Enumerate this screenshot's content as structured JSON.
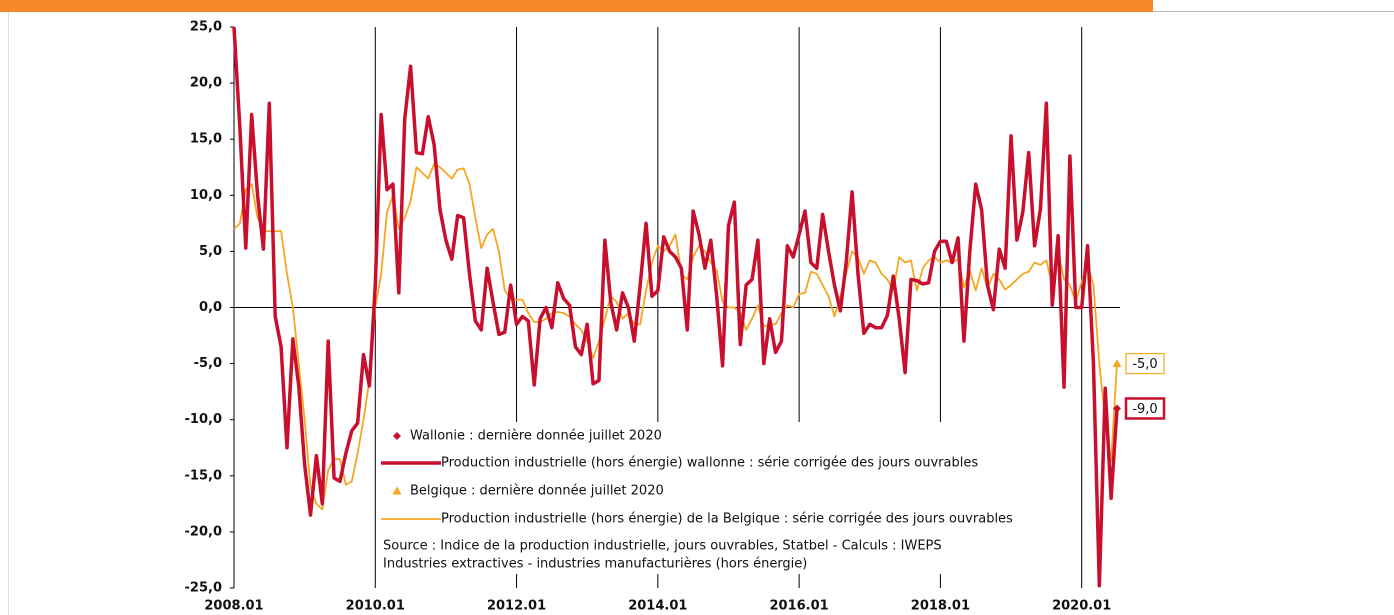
{
  "chart_data": {
    "type": "line",
    "categories": [
      "2008.01",
      null,
      null,
      null,
      null,
      null,
      null,
      null,
      null,
      null,
      null,
      null,
      null,
      null,
      null,
      null,
      null,
      null,
      null,
      null,
      null,
      null,
      null,
      null,
      "2010.01",
      null,
      null,
      null,
      null,
      null,
      null,
      null,
      null,
      null,
      null,
      null,
      null,
      null,
      null,
      null,
      null,
      null,
      null,
      null,
      null,
      null,
      null,
      null,
      "2012.01",
      null,
      null,
      null,
      null,
      null,
      null,
      null,
      null,
      null,
      null,
      null,
      null,
      null,
      null,
      null,
      null,
      null,
      null,
      null,
      null,
      null,
      null,
      null,
      "2014.01",
      null,
      null,
      null,
      null,
      null,
      null,
      null,
      null,
      null,
      null,
      null,
      null,
      null,
      null,
      null,
      null,
      null,
      null,
      null,
      null,
      null,
      null,
      null,
      "2016.01",
      null,
      null,
      null,
      null,
      null,
      null,
      null,
      null,
      null,
      null,
      null,
      null,
      null,
      null,
      null,
      null,
      null,
      null,
      null,
      null,
      null,
      null,
      null,
      "2018.01",
      null,
      null,
      null,
      null,
      null,
      null,
      null,
      null,
      null,
      null,
      null,
      null,
      null,
      null,
      null,
      null,
      null,
      null,
      null,
      null,
      null,
      null,
      null,
      "2020.01",
      null,
      null,
      null,
      null,
      null,
      null
    ],
    "series": [
      {
        "name": "Production  industrielle (hors énergie) wallonne : série corrigée des jours ouvrables",
        "marker_label": "Wallonie : dernière donnée juillet 2020",
        "annotation": "-9,0",
        "color": "#c8102e",
        "marker": "diamond",
        "width": 3.5,
        "values": [
          25,
          16,
          5.3,
          17.2,
          10,
          5.2,
          18.2,
          -0.8,
          -3.5,
          -12.5,
          -2.8,
          -7,
          -14,
          -18.5,
          -13.2,
          -17.5,
          -3,
          -15.2,
          -15.5,
          -13,
          -11,
          -10.3,
          -4.2,
          -7,
          2,
          17.2,
          10.5,
          11,
          1.3,
          16.8,
          21.5,
          13.8,
          13.7,
          17,
          14.5,
          8.7,
          6,
          4.3,
          8.2,
          8,
          3,
          -1.2,
          -2,
          3.5,
          0.5,
          -2.4,
          -2.2,
          2,
          -1.5,
          -0.8,
          -1.2,
          -6.9,
          -1,
          0,
          -1.8,
          2.2,
          0.8,
          0.2,
          -3.5,
          -4.2,
          -1.5,
          -6.8,
          -6.5,
          6,
          0.5,
          -2,
          1.3,
          0,
          -3,
          2,
          7.5,
          1,
          1.5,
          6.3,
          5,
          4.5,
          3.5,
          -2,
          8.6,
          6.5,
          3.5,
          6,
          1,
          -5.2,
          7.3,
          9.4,
          -3.3,
          2,
          2.5,
          6,
          -5,
          -1,
          -4,
          -3,
          5.5,
          4.5,
          6.5,
          8.6,
          4,
          3.5,
          8.3,
          5,
          2,
          -0.3,
          4,
          10.3,
          3,
          -2.3,
          -1.5,
          -1.8,
          -1.8,
          -0.7,
          2.8,
          -1,
          -5.8,
          2.5,
          2.4,
          2.1,
          2.2,
          5,
          5.9,
          5.9,
          4,
          6.2,
          -3,
          5,
          11,
          8.7,
          2,
          -0.2,
          5.2,
          3.5,
          15.3,
          6,
          8.5,
          13.8,
          5.5,
          8.8,
          18.2,
          0.2,
          6.4,
          -7.1,
          13.5,
          0,
          0,
          5.5,
          -5,
          -24.8,
          -7.2,
          -17,
          -9
        ]
      },
      {
        "name": "Production industrielle (hors énergie) de la Belgique : série corrigée des jours ouvrables",
        "marker_label": "Belgique : dernière donnée juillet 2020",
        "annotation": "-5,0",
        "color": "#f5a623",
        "marker": "triangle",
        "width": 1.8,
        "values": [
          7,
          7.5,
          10.5,
          11,
          8,
          6.8,
          6.8,
          6.8,
          6.8,
          3,
          0,
          -5,
          -10,
          -16,
          -17.5,
          -18,
          -14.5,
          -13.5,
          -13.5,
          -15.8,
          -15.5,
          -13,
          -10,
          -6.5,
          0,
          3,
          8.5,
          10,
          7,
          8,
          9.5,
          12.5,
          12,
          11.5,
          12.8,
          12.5,
          12,
          11.5,
          12.3,
          12.4,
          11,
          8,
          5.3,
          6.5,
          7,
          5,
          1.5,
          0.8,
          0.7,
          0.7,
          -0.5,
          -1.3,
          -1.3,
          -1,
          -0.5,
          -0.4,
          -0.5,
          -0.8,
          -1.5,
          -2,
          -3,
          -4.5,
          -3,
          -1,
          1,
          0.5,
          -1,
          -0.5,
          -1.5,
          -1.5,
          1.5,
          4,
          5.5,
          5,
          5.5,
          6.5,
          3,
          2.5,
          4.5,
          5.5,
          5,
          4,
          3.3,
          0.5,
          0,
          0,
          -0.5,
          -2,
          -1,
          0.2,
          -1.7,
          -1.5,
          -1.5,
          -0.5,
          0.2,
          0,
          1.2,
          1.3,
          3.2,
          3,
          2,
          1,
          -0.8,
          1,
          3,
          5,
          4.5,
          3,
          4.2,
          4,
          3,
          2.5,
          1.5,
          4.5,
          4,
          4.2,
          1.5,
          3.5,
          4.2,
          4.5,
          4,
          4.2,
          4,
          4.3,
          1.8,
          3.3,
          1.5,
          3.5,
          1.7,
          3,
          2.5,
          1.6,
          2,
          2.5,
          3,
          3.2,
          4,
          3.8,
          4.2,
          2,
          5,
          2.5,
          2,
          0.5,
          2.3,
          3.8,
          2,
          -5,
          -10,
          -13.7,
          -5
        ]
      }
    ],
    "ylim": [
      -25,
      25
    ],
    "yticks": [
      {
        "value": -25,
        "label": "-25,0"
      },
      {
        "value": -20,
        "label": "-20,0"
      },
      {
        "value": -15,
        "label": "-15,0"
      },
      {
        "value": -10,
        "label": "-10,0"
      },
      {
        "value": -5,
        "label": "-5,0"
      },
      {
        "value": 0,
        "label": "0,0"
      },
      {
        "value": 5,
        "label": "5,0"
      },
      {
        "value": 10,
        "label": "10,0"
      },
      {
        "value": 15,
        "label": "15,0"
      },
      {
        "value": 20,
        "label": "20,0"
      },
      {
        "value": 25,
        "label": "25,0"
      }
    ],
    "source": [
      "Source : Indice de la production industrielle, jours ouvrables, Statbel - Calculs : IWEPS",
      "Industries extractives - industries manufacturières (hors énergie)"
    ],
    "grid": true
  }
}
